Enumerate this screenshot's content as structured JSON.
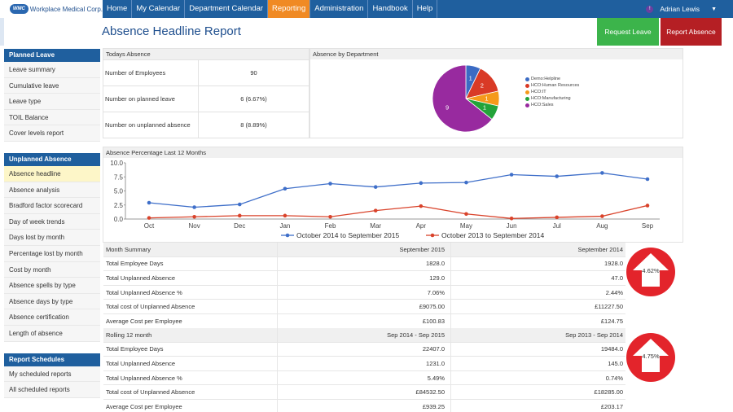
{
  "brand": {
    "badge": "WMC",
    "name": "Workplace Medical Corp."
  },
  "nav": [
    "Home",
    "My Calendar",
    "Department Calendar",
    "Reporting",
    "Administration",
    "Handbook",
    "Help"
  ],
  "nav_active": 3,
  "user": {
    "badge": "!",
    "name": "Adrian Lewis",
    "caret": "▼"
  },
  "page_title": "Absence Headline Report",
  "buttons": {
    "request_leave": "Request Leave",
    "report_absence": "Report Absence"
  },
  "sidebar": {
    "planned_leave": {
      "title": "Planned Leave",
      "items": [
        "Leave summary",
        "Cumulative leave",
        "Leave type",
        "TOIL Balance",
        "Cover levels report"
      ]
    },
    "unplanned_absence": {
      "title": "Unplanned Absence",
      "items": [
        "Absence headline",
        "Absence analysis",
        "Bradford factor scorecard",
        "Day of week trends",
        "Days lost by month",
        "Percentage lost by month",
        "Cost by month",
        "Absence spells by type",
        "Absence days by type",
        "Absence certification",
        "Length of absence"
      ]
    },
    "report_schedules": {
      "title": "Report Schedules",
      "items": [
        "My scheduled reports",
        "All scheduled reports"
      ]
    }
  },
  "todays_absence": {
    "title": "Todays Absence",
    "rows": [
      {
        "label": "Number of Employees",
        "value": "90"
      },
      {
        "label": "Number on planned leave",
        "value": "6  (6.67%)"
      },
      {
        "label": "Number on unplanned absence",
        "value": "8  (8.89%)"
      }
    ]
  },
  "absence_by_department": {
    "title": "Absence by Department"
  },
  "chart_data": [
    {
      "type": "pie",
      "title": "Absence by Department",
      "labels": [
        "Demo:Helpline",
        "HCO:Human Resources",
        "HCO:IT",
        "HCO:Manufacturing",
        "HCO:Sales"
      ],
      "values": [
        1,
        2,
        1,
        1,
        9
      ],
      "colors": [
        "#3b6bc4",
        "#d93a26",
        "#f59a1b",
        "#23a33a",
        "#982a9f"
      ],
      "legend": "right"
    },
    {
      "type": "line",
      "title": "Absence Percentage Last 12 Months",
      "categories": [
        "Oct",
        "Nov",
        "Dec",
        "Jan",
        "Feb",
        "Mar",
        "Apr",
        "May",
        "Jun",
        "Jul",
        "Aug",
        "Sep"
      ],
      "series": [
        {
          "name": "October 2014 to September 2015",
          "color": "#3f6fc9",
          "values": [
            2.9,
            2.1,
            2.6,
            5.4,
            6.3,
            5.7,
            6.4,
            6.5,
            7.9,
            7.6,
            8.2,
            7.1
          ]
        },
        {
          "name": "October 2013 to September 2014",
          "color": "#d9432b",
          "values": [
            0.2,
            0.4,
            0.6,
            0.6,
            0.4,
            1.5,
            2.3,
            0.9,
            0.1,
            0.3,
            0.5,
            2.4
          ]
        }
      ],
      "ylim": [
        0,
        10
      ],
      "yticks": [
        "0.0",
        "2.5",
        "5.0",
        "7.5",
        "10.0"
      ],
      "legend": "bottom"
    }
  ],
  "month_summary": {
    "headers": [
      "Month Summary",
      "September 2015",
      "September 2014"
    ],
    "rows": [
      [
        "Total Employee Days",
        "1828.0",
        "1928.0"
      ],
      [
        "Total Unplanned Absence",
        "129.0",
        "47.0"
      ],
      [
        "Total Unplanned Absence %",
        "7.06%",
        "2.44%"
      ],
      [
        "Total cost of Unplanned Absence",
        "£9075.00",
        "£11227.50"
      ],
      [
        "Average Cost per Employee",
        "£100.83",
        "£124.75"
      ]
    ],
    "change": "4.62%"
  },
  "rolling": {
    "headers": [
      "Rolling 12 month",
      "Sep 2014 - Sep 2015",
      "Sep 2013 - Sep 2014"
    ],
    "rows": [
      [
        "Total Employee Days",
        "22407.0",
        "19484.0"
      ],
      [
        "Total Unplanned Absence",
        "1231.0",
        "145.0"
      ],
      [
        "Total Unplanned Absence %",
        "5.49%",
        "0.74%"
      ],
      [
        "Total cost of Unplanned Absence",
        "£84532.50",
        "£18285.00"
      ],
      [
        "Average Cost per Employee",
        "£939.25",
        "£203.17"
      ]
    ],
    "change": "4.75%"
  }
}
